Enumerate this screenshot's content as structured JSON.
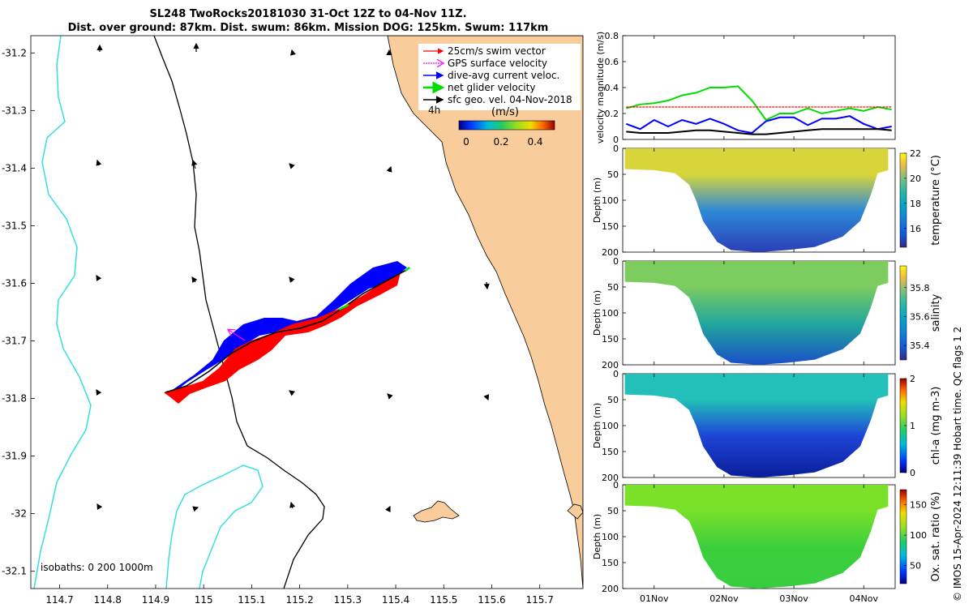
{
  "title": {
    "line1": "SL248 TwoRocks20181030 31-Oct 12Z to 04-Nov 11Z.",
    "line2": "Dist. over ground: 87km. Dist. swum: 86km. Mission DOG: 125km. Swum: 117km"
  },
  "credit": "© IMOS 15-Apr-2024 12:11:39 Hobart time. QC flags 1  2",
  "colors": {
    "land": "#f9cc9b",
    "coast_isobath_0": "#000000",
    "isobath_200": "#000000",
    "isobath_1000": "#33e0e0",
    "swim_vector": "#ff0000",
    "gps_surface": "#ff00ff",
    "dive_avg_current": "#0000ff",
    "net_glider": "#00dd00",
    "sfc_geo_vel": "#000000"
  },
  "map": {
    "legend": [
      {
        "label": "25cm/s swim vector",
        "color": "#ff0000"
      },
      {
        "label": "GPS surface velocity",
        "color": "#ff00ff"
      },
      {
        "label": "dive-avg current veloc.",
        "color": "#0000ff"
      },
      {
        "label": "net glider velocity",
        "color": "#00dd00"
      },
      {
        "label": "sfc geo. vel. 04-Nov-2018",
        "color": "#000000"
      }
    ],
    "time_label": "4h",
    "colorbar_label": "(m/s)",
    "colorbar_ticks": [
      "0",
      "0.2",
      "0.4"
    ],
    "isobath_label": "isobaths: 0   200  1000m"
  },
  "chart_data": [
    {
      "type": "map",
      "title": "SL248 TwoRocks20181030 31-Oct 12Z to 04-Nov 11Z.",
      "xlim": [
        114.64,
        115.79
      ],
      "ylim": [
        -32.13,
        -31.17
      ],
      "x_ticks": [
        "114.7",
        "114.8",
        "114.9",
        "115",
        "115.1",
        "115.2",
        "115.3",
        "115.4",
        "115.5",
        "115.6",
        "115.7"
      ],
      "y_ticks": [
        "-31.2",
        "-31.3",
        "-31.4",
        "-31.5",
        "-31.6",
        "-31.7",
        "-31.8",
        "-31.9",
        "-32",
        "-32.1"
      ],
      "glider_track": {
        "lon": [
          114.94,
          115.0,
          115.05,
          115.1,
          115.15,
          115.2,
          115.25,
          115.3,
          115.35,
          115.4,
          115.43
        ],
        "lat": [
          -31.8,
          -31.775,
          -31.745,
          -31.715,
          -31.69,
          -31.675,
          -31.665,
          -31.645,
          -31.62,
          -31.595,
          -31.58
        ]
      },
      "gps_surface_velocity": {
        "lon": 115.08,
        "lat": -31.715,
        "u": -0.17,
        "v": 0.1
      }
    },
    {
      "type": "line",
      "ylabel": "velocity magnitude (m/s)",
      "ylim": [
        0,
        0.8
      ],
      "y_ticks": [
        "0",
        "0.2",
        "0.4",
        "0.6",
        "0.8"
      ],
      "x": [
        0.6,
        0.8,
        1.0,
        1.2,
        1.4,
        1.6,
        1.8,
        2.0,
        2.2,
        2.4,
        2.6,
        2.8,
        3.0,
        3.2,
        3.4,
        3.6,
        3.8,
        4.0,
        4.2,
        4.4
      ],
      "series": [
        {
          "name": "net glider velocity",
          "color": "#00dd00",
          "values": [
            0.24,
            0.27,
            0.28,
            0.3,
            0.34,
            0.36,
            0.4,
            0.4,
            0.41,
            0.3,
            0.15,
            0.2,
            0.2,
            0.24,
            0.2,
            0.22,
            0.24,
            0.22,
            0.25,
            0.23
          ]
        },
        {
          "name": "25cm/s swim vector",
          "color": "#ff0000",
          "values": [
            0.25,
            0.25,
            0.25,
            0.25,
            0.25,
            0.25,
            0.25,
            0.25,
            0.25,
            0.25,
            0.25,
            0.25,
            0.25,
            0.25,
            0.25,
            0.25,
            0.25,
            0.25,
            0.25,
            0.25
          ]
        },
        {
          "name": "dive-avg current veloc.",
          "color": "#0000ff",
          "values": [
            0.12,
            0.08,
            0.15,
            0.1,
            0.15,
            0.12,
            0.16,
            0.12,
            0.07,
            0.05,
            0.14,
            0.17,
            0.17,
            0.11,
            0.16,
            0.16,
            0.18,
            0.12,
            0.08,
            0.1
          ]
        },
        {
          "name": "sfc geo. vel. 04-Nov-2018",
          "color": "#000000",
          "values": [
            0.06,
            0.05,
            0.05,
            0.05,
            0.06,
            0.07,
            0.07,
            0.06,
            0.05,
            0.04,
            0.04,
            0.05,
            0.06,
            0.07,
            0.08,
            0.08,
            0.08,
            0.08,
            0.08,
            0.07
          ]
        }
      ]
    },
    {
      "type": "heatmap",
      "variable": "temperature",
      "colorbar_label": "temperature (°C)",
      "colorbar_ticks": [
        "16",
        "18",
        "20",
        "22"
      ],
      "clim": [
        14.5,
        22
      ],
      "ylabel": "Depth (m)",
      "ylim": [
        200,
        0
      ],
      "y_ticks": [
        "0",
        "50",
        "100",
        "150",
        "200"
      ],
      "mixed_layer_value": 19.5,
      "deep_value": 15.5
    },
    {
      "type": "heatmap",
      "variable": "salinity",
      "colorbar_label": "salinity",
      "colorbar_ticks": [
        "35.4",
        "35.6",
        "35.8"
      ],
      "clim": [
        35.3,
        35.95
      ],
      "ylabel": "Depth (m)",
      "ylim": [
        200,
        0
      ],
      "y_ticks": [
        "0",
        "50",
        "100",
        "150",
        "200"
      ],
      "mixed_layer_value": 35.68,
      "deep_value": 35.45
    },
    {
      "type": "heatmap",
      "variable": "chlorophyll",
      "colorbar_label": "chl-a (mg m-3)",
      "colorbar_ticks": [
        "0",
        "1",
        "2"
      ],
      "clim": [
        0,
        2
      ],
      "ylabel": "Depth (m)",
      "ylim": [
        200,
        0
      ],
      "y_ticks": [
        "0",
        "50",
        "100",
        "150",
        "200"
      ],
      "mixed_layer_value": 0.6,
      "deep_value": 0.15
    },
    {
      "type": "heatmap",
      "variable": "oxygen saturation",
      "colorbar_label": "Ox. sat. ratio (%)",
      "colorbar_ticks": [
        "50",
        "100",
        "150"
      ],
      "clim": [
        20,
        175
      ],
      "ylabel": "Depth (m)",
      "ylim": [
        200,
        0
      ],
      "y_ticks": [
        "0",
        "50",
        "100",
        "150",
        "200"
      ],
      "mixed_layer_value": 105,
      "deep_value": 100
    }
  ],
  "time_axis": {
    "labels": [
      "01Nov",
      "02Nov",
      "03Nov",
      "04Nov"
    ],
    "positions_day": [
      1,
      2,
      3,
      4
    ],
    "xlim_day": [
      0.55,
      4.45
    ]
  }
}
